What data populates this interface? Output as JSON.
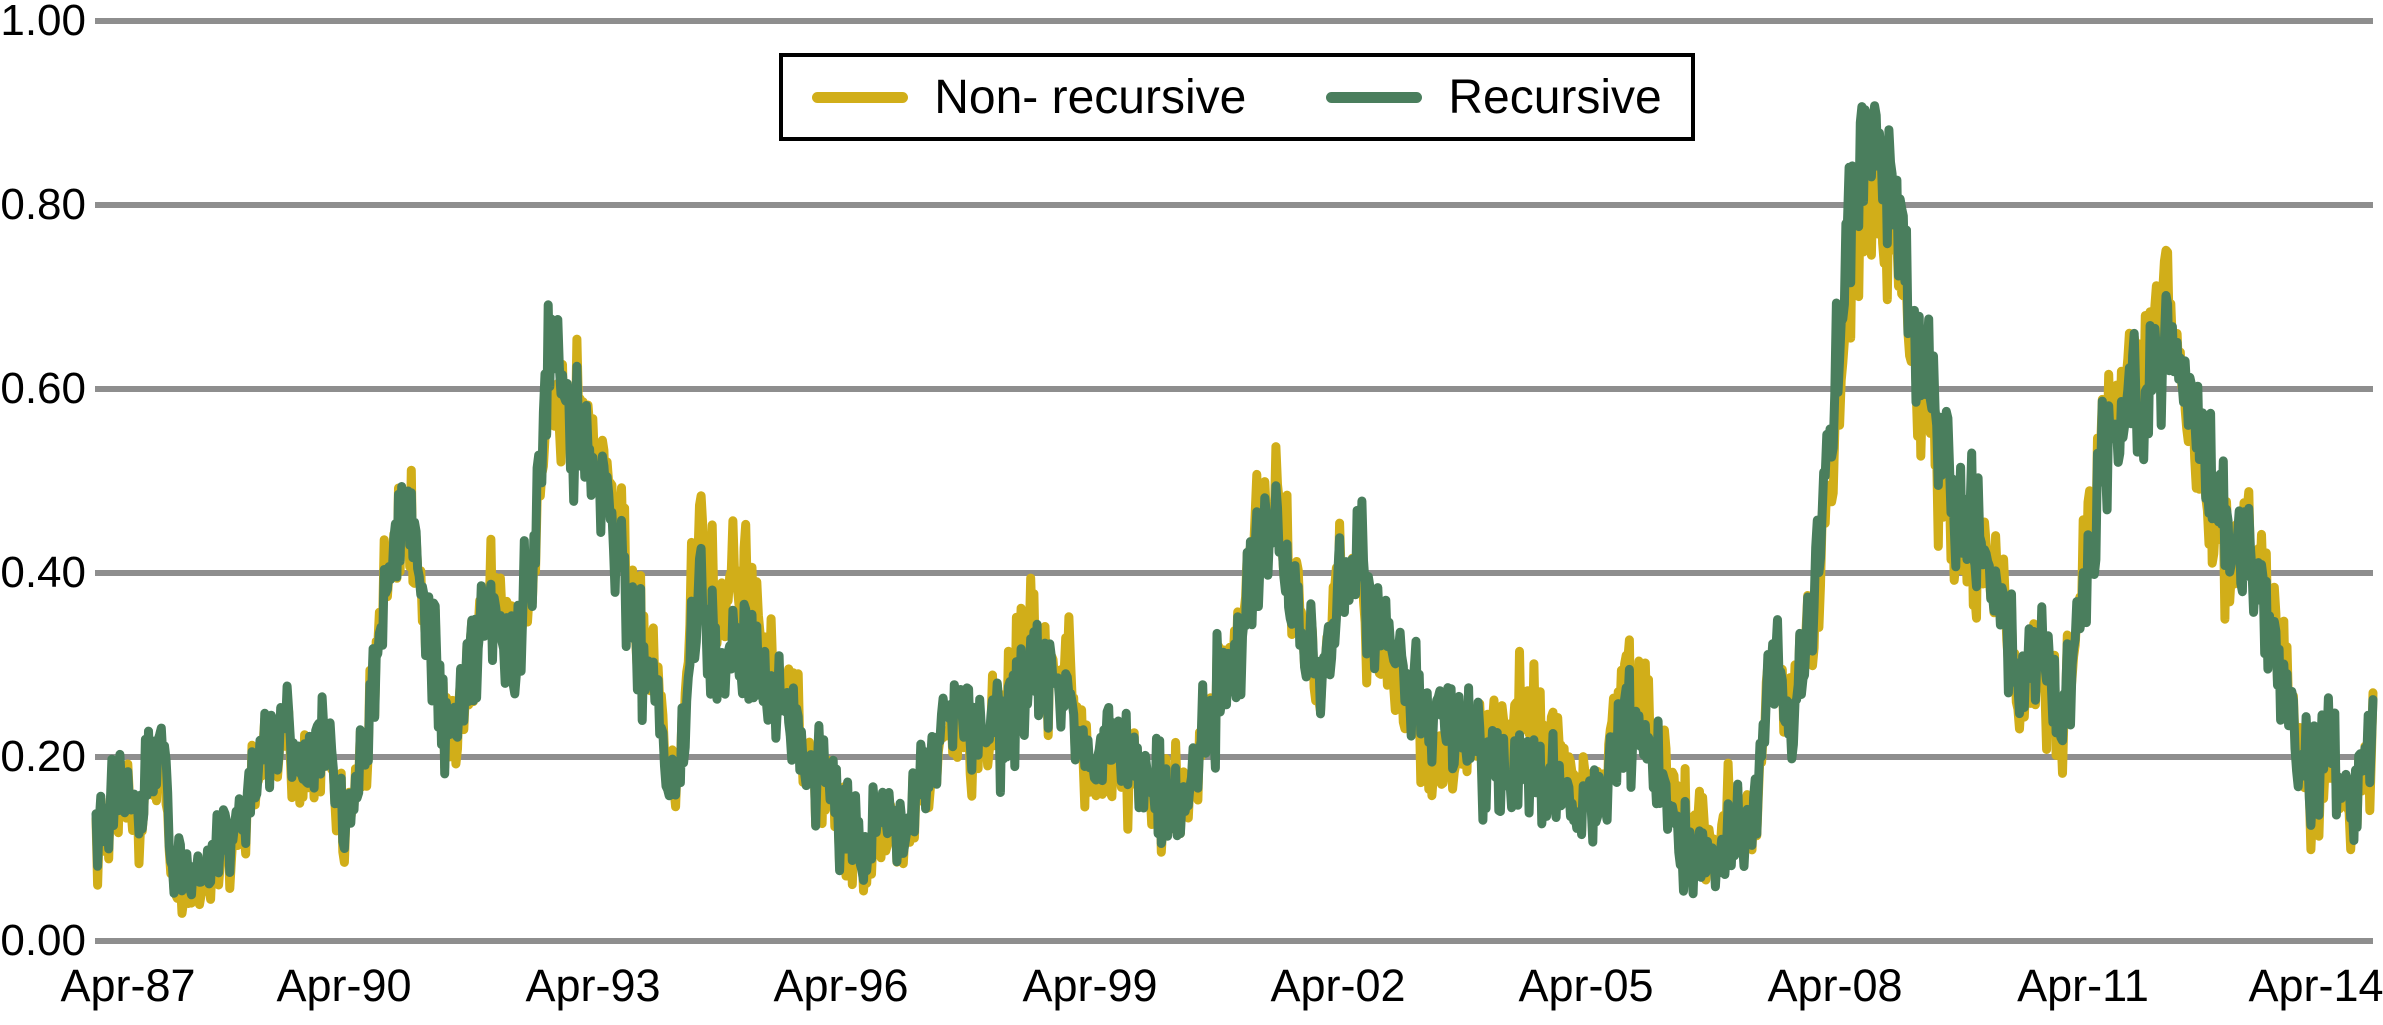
{
  "chart_data": {
    "type": "line",
    "title": "",
    "background_color": "#ffffff",
    "grid": "horizontal",
    "grid_color": "#8e8e8e",
    "text_color": "#000000",
    "y_axis": {
      "range": [
        0.0,
        1.0
      ],
      "tick_values": [
        1.0,
        0.8,
        0.6,
        0.4,
        0.2,
        0.0
      ],
      "tick_labels": [
        "1.00",
        "0.80",
        "0.60",
        "0.40",
        "0.20",
        "0.00"
      ]
    },
    "x_axis": {
      "domain_years": [
        1987.25,
        2014.75
      ],
      "ticks": [
        {
          "label": "Apr-87",
          "year": 1987.25
        },
        {
          "label": "Apr-90",
          "year": 1990.25
        },
        {
          "label": "Apr-93",
          "year": 1993.25
        },
        {
          "label": "Apr-96",
          "year": 1996.25
        },
        {
          "label": "Apr-99",
          "year": 1999.25
        },
        {
          "label": "Apr-02",
          "year": 2002.25
        },
        {
          "label": "Apr-05",
          "year": 2005.25
        },
        {
          "label": "Apr-08",
          "year": 2008.25
        },
        {
          "label": "Apr-11",
          "year": 2011.25
        },
        {
          "label": "Apr-14",
          "year": 2014.25
        }
      ]
    },
    "legend": {
      "position": "top-center",
      "border_color": "#000000"
    },
    "anchor_years_start": 1987.25,
    "anchor_step_years": 0.25,
    "series": [
      {
        "name": "Non- recursive",
        "color": "#d1ae19",
        "values": [
          0.12,
          0.15,
          0.14,
          0.19,
          0.06,
          0.05,
          0.09,
          0.12,
          0.19,
          0.22,
          0.19,
          0.21,
          0.12,
          0.19,
          0.42,
          0.46,
          0.35,
          0.21,
          0.29,
          0.4,
          0.31,
          0.36,
          0.58,
          0.58,
          0.54,
          0.46,
          0.36,
          0.27,
          0.14,
          0.44,
          0.38,
          0.41,
          0.32,
          0.28,
          0.23,
          0.17,
          0.12,
          0.09,
          0.11,
          0.11,
          0.16,
          0.22,
          0.24,
          0.21,
          0.26,
          0.34,
          0.28,
          0.29,
          0.18,
          0.19,
          0.18,
          0.16,
          0.15,
          0.17,
          0.26,
          0.32,
          0.43,
          0.45,
          0.38,
          0.27,
          0.4,
          0.4,
          0.3,
          0.27,
          0.22,
          0.18,
          0.2,
          0.22,
          0.2,
          0.26,
          0.22,
          0.18,
          0.16,
          0.2,
          0.28,
          0.24,
          0.17,
          0.13,
          0.11,
          0.14,
          0.12,
          0.3,
          0.24,
          0.36,
          0.55,
          0.76,
          0.79,
          0.75,
          0.63,
          0.52,
          0.45,
          0.42,
          0.38,
          0.24,
          0.3,
          0.22,
          0.42,
          0.55,
          0.63,
          0.61,
          0.71,
          0.57,
          0.49,
          0.41,
          0.44,
          0.35,
          0.26,
          0.15,
          0.2,
          0.12,
          0.21
        ]
      },
      {
        "name": "Recursive",
        "color": "#4a7e5d",
        "values": [
          0.13,
          0.16,
          0.15,
          0.2,
          0.08,
          0.07,
          0.1,
          0.13,
          0.2,
          0.23,
          0.2,
          0.22,
          0.13,
          0.2,
          0.4,
          0.48,
          0.36,
          0.22,
          0.3,
          0.38,
          0.3,
          0.38,
          0.64,
          0.57,
          0.52,
          0.44,
          0.34,
          0.25,
          0.15,
          0.36,
          0.32,
          0.33,
          0.28,
          0.26,
          0.21,
          0.18,
          0.13,
          0.1,
          0.13,
          0.12,
          0.17,
          0.24,
          0.26,
          0.22,
          0.24,
          0.28,
          0.3,
          0.25,
          0.2,
          0.21,
          0.2,
          0.17,
          0.14,
          0.18,
          0.25,
          0.3,
          0.4,
          0.44,
          0.36,
          0.28,
          0.37,
          0.44,
          0.33,
          0.3,
          0.26,
          0.24,
          0.22,
          0.2,
          0.16,
          0.19,
          0.17,
          0.16,
          0.14,
          0.18,
          0.24,
          0.2,
          0.15,
          0.1,
          0.09,
          0.12,
          0.12,
          0.32,
          0.22,
          0.38,
          0.6,
          0.82,
          0.86,
          0.8,
          0.66,
          0.55,
          0.48,
          0.44,
          0.36,
          0.26,
          0.32,
          0.24,
          0.38,
          0.52,
          0.6,
          0.58,
          0.66,
          0.6,
          0.52,
          0.44,
          0.42,
          0.33,
          0.24,
          0.17,
          0.22,
          0.13,
          0.22
        ]
      }
    ],
    "render_hints": {
      "line_width": 9,
      "gridline_width": 6,
      "weekly_points_per_year": 52,
      "noise_seed": 20140425,
      "noise_base_amp": 0.024,
      "noise_level_amp": 0.06,
      "noise_common_weight": 1.0,
      "noise_idio_weight": 0.5,
      "clamp_min": 0.03,
      "clamp_max": 0.915
    }
  }
}
